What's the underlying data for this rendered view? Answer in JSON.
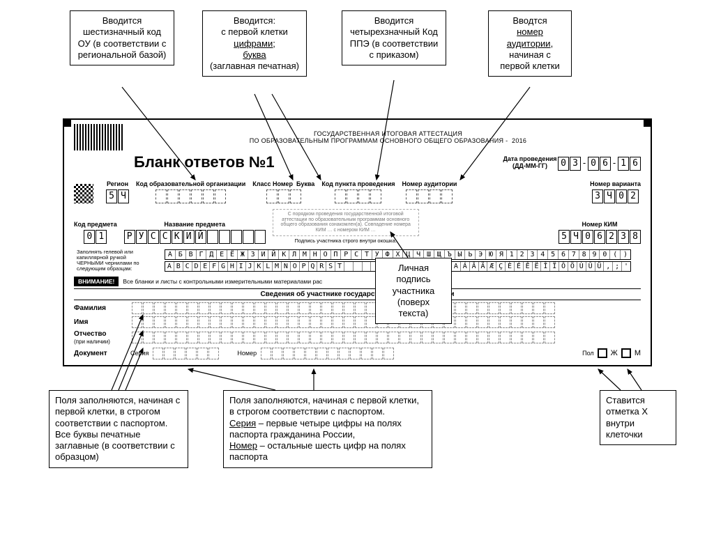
{
  "callouts": {
    "c1": "Вводится шестизначный код ОУ (в соответствии с региональной базой)",
    "c2_l1": "Вводится:",
    "c2_l2": "с первой клетки",
    "c2_l3": "цифрами;",
    "c2_l4": "буква",
    "c2_l5": "(заглавная печатная)",
    "c3": "Вводится четырехзначный Код ППЭ (в соответствии с приказом)",
    "c4_l1": "Вводтся",
    "c4_l2": "номер аудитории",
    "c4_l3": ", начиная с первой клетки",
    "c5": "Личная подпись участника (поверх текста)",
    "c6": "Поля заполняются, начиная с первой клетки, в строгом соответствии с паспортом. Все буквы печатные заглавные (в соответствии с образцом)",
    "c7_a": "Поля заполняются, начиная с первой клетки, в строгом соответствии с паспортом.",
    "c7_b": "Серия",
    "c7_c": " – первые четыре цифры на полях паспорта гражданина России,",
    "c7_d": "Номер",
    "c7_e": " – остальные шесть цифр на полях паспорта",
    "c8": "Ставится отметка  X внутри клеточки"
  },
  "hdr": {
    "l1": "ГОСУДАРСТВЕННАЯ ИТОГОВАЯ АТТЕСТАЦИЯ",
    "l2": "ПО ОБРАЗОВАТЕЛЬНЫМ ПРОГРАММАМ ОСНОВНОГО ОБЩЕГО ОБРАЗОВАНИЯ -",
    "year": "2016",
    "title": "Бланк ответов №1",
    "date_lbl": "Дата проведения (ДД-ММ-ГГ)",
    "date": [
      "0",
      "3",
      "-",
      "0",
      "6",
      "-",
      "1",
      "6"
    ]
  },
  "labels": {
    "region": "Регион",
    "edu_code": "Код образовательной организации",
    "class_num": "Класс Номер",
    "class_let": "Буква",
    "ppe": "Код пункта проведения",
    "aud": "Номер аудитории",
    "variant": "Номер варианта",
    "subj_code": "Код предмета",
    "subj_name": "Название предмета",
    "kim": "Номер КИМ",
    "sign_caption": "Подпись участника строго внутри окошка.",
    "fine": "С порядком проведения государственной итоговой аттестации по образовательным программам основного общего образования ознакомлен(а). Совпадение номера КИМ … с номером КИМ …",
    "instr": "Заполнять гелевой или капиллярной ручкой ЧЕРНЫМИ чернилами по следующим образцам:",
    "attn": "ВНИМАНИЕ!",
    "attn_txt": "Все бланки и листы с контрольными измерительными материалами рас",
    "section": "Сведения об участнике государственной",
    "fam": "Фамилия",
    "name": "Имя",
    "patr": "Отчество",
    "patr2": "(при наличии)",
    "doc": "Документ",
    "ser": "Серия",
    "num": "Номер",
    "pol": "Пол",
    "zh": "Ж",
    "m": "М",
    "tation": "тации"
  },
  "values": {
    "region": [
      "5",
      "Ч"
    ],
    "variant": [
      "3",
      "Ч",
      "0",
      "2"
    ],
    "subj_code": [
      "0",
      "1"
    ],
    "subj_name": [
      "Р",
      "У",
      "С",
      "С",
      "К",
      "И",
      "Й",
      "",
      "",
      "",
      "",
      ""
    ],
    "kim": [
      "5",
      "Ч",
      "0",
      "6",
      "2",
      "3",
      "8"
    ]
  },
  "alpha": {
    "r1": "АБВГДЕЁЖЗИЙКЛМНОПРСТУФХЦЧШЩЪЫЬЭЮЯ1234567890()",
    "r2": "ABCDEFGHIJKLMNOPQRST            AÁÂÄÆÇÈÉÊËÎÏÔÖÙÛÜ,;'"
  }
}
